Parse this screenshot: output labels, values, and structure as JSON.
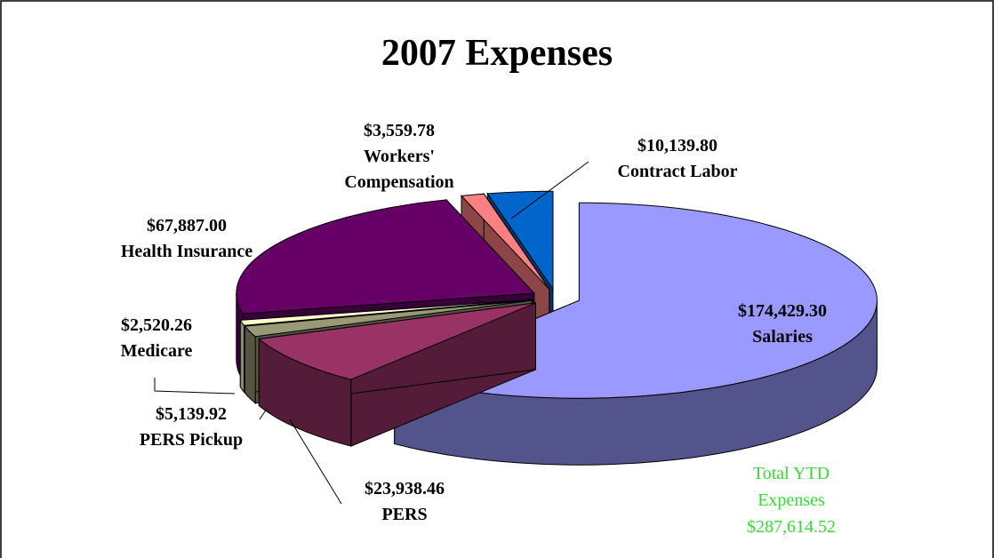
{
  "chart_data": {
    "type": "pie",
    "title": "2007 Expenses",
    "categories": [
      "Salaries",
      "PERS",
      "PERS Pickup",
      "Medicare",
      "Health Insurance",
      "Workers' Compensation",
      "Contract Labor"
    ],
    "values": [
      174429.3,
      23938.46,
      5139.92,
      2520.26,
      67887.0,
      3559.78,
      10139.8
    ],
    "value_labels": [
      "$174,429.30",
      "$23,938.46",
      "$5,139.92",
      "$2,520.26",
      "$67,887.00",
      "$3,559.78",
      "$10,139.80"
    ],
    "colors": [
      "#9999ff",
      "#993366",
      "#999977",
      "#ffffcc",
      "#660066",
      "#ff8080",
      "#0066cc"
    ],
    "annotation": "Total YTD Expenses $287,614.52"
  }
}
